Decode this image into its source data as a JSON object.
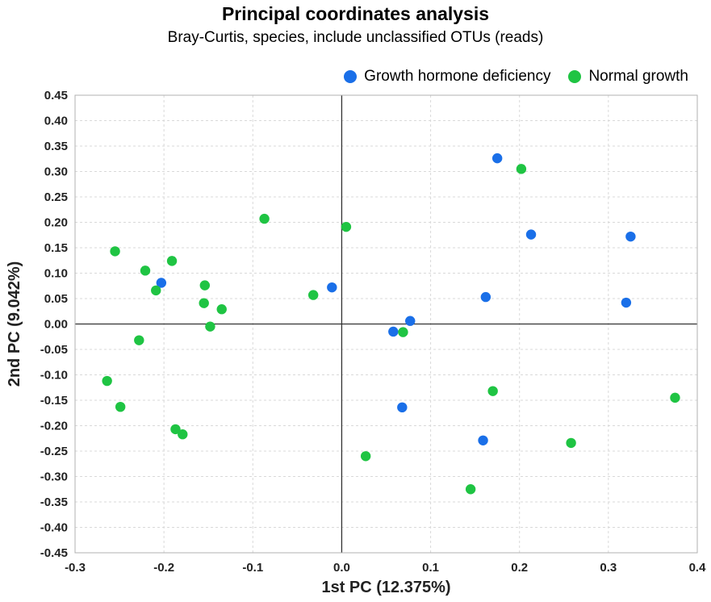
{
  "chart_data": {
    "type": "scatter",
    "title": "Principal coordinates analysis",
    "subtitle": "Bray-Curtis, species, include unclassified OTUs (reads)",
    "xlabel": "1st PC (12.375%)",
    "ylabel": "2nd PC (9.042%)",
    "xlim": [
      -0.3,
      0.4
    ],
    "ylim": [
      -0.45,
      0.45
    ],
    "x_ticks": [
      "-0.3",
      "-0.2",
      "-0.1",
      "0.0",
      "0.1",
      "0.2",
      "0.3",
      "0.4"
    ],
    "y_ticks": [
      "0.45",
      "0.40",
      "0.35",
      "0.30",
      "0.25",
      "0.20",
      "0.15",
      "0.10",
      "0.05",
      "0.00",
      "-0.05",
      "-0.10",
      "-0.15",
      "-0.20",
      "-0.25",
      "-0.30",
      "-0.35",
      "-0.40",
      "-0.45"
    ],
    "grid": true,
    "legend_position": "top-right",
    "series": [
      {
        "name": "Growth hormone deficiency",
        "color": "#1a6fe8",
        "points": [
          {
            "x": -0.203,
            "y": 0.081
          },
          {
            "x": -0.011,
            "y": 0.072
          },
          {
            "x": 0.175,
            "y": 0.326
          },
          {
            "x": 0.213,
            "y": 0.176
          },
          {
            "x": 0.325,
            "y": 0.172
          },
          {
            "x": 0.162,
            "y": 0.053
          },
          {
            "x": 0.32,
            "y": 0.042
          },
          {
            "x": 0.077,
            "y": 0.006
          },
          {
            "x": 0.058,
            "y": -0.015
          },
          {
            "x": 0.068,
            "y": -0.164
          },
          {
            "x": 0.159,
            "y": -0.229
          }
        ]
      },
      {
        "name": "Normal growth",
        "color": "#1fc443",
        "points": [
          {
            "x": 0.202,
            "y": 0.305
          },
          {
            "x": -0.087,
            "y": 0.207
          },
          {
            "x": 0.005,
            "y": 0.191
          },
          {
            "x": -0.255,
            "y": 0.143
          },
          {
            "x": -0.221,
            "y": 0.105
          },
          {
            "x": -0.191,
            "y": 0.124
          },
          {
            "x": -0.209,
            "y": 0.066
          },
          {
            "x": -0.154,
            "y": 0.076
          },
          {
            "x": -0.155,
            "y": 0.041
          },
          {
            "x": -0.135,
            "y": 0.029
          },
          {
            "x": -0.032,
            "y": 0.057
          },
          {
            "x": -0.148,
            "y": -0.005
          },
          {
            "x": 0.069,
            "y": -0.016
          },
          {
            "x": -0.228,
            "y": -0.032
          },
          {
            "x": -0.264,
            "y": -0.112
          },
          {
            "x": -0.249,
            "y": -0.163
          },
          {
            "x": 0.17,
            "y": -0.132
          },
          {
            "x": 0.375,
            "y": -0.145
          },
          {
            "x": -0.187,
            "y": -0.207
          },
          {
            "x": -0.179,
            "y": -0.217
          },
          {
            "x": 0.258,
            "y": -0.234
          },
          {
            "x": 0.027,
            "y": -0.26
          },
          {
            "x": 0.145,
            "y": -0.325
          }
        ]
      }
    ]
  }
}
